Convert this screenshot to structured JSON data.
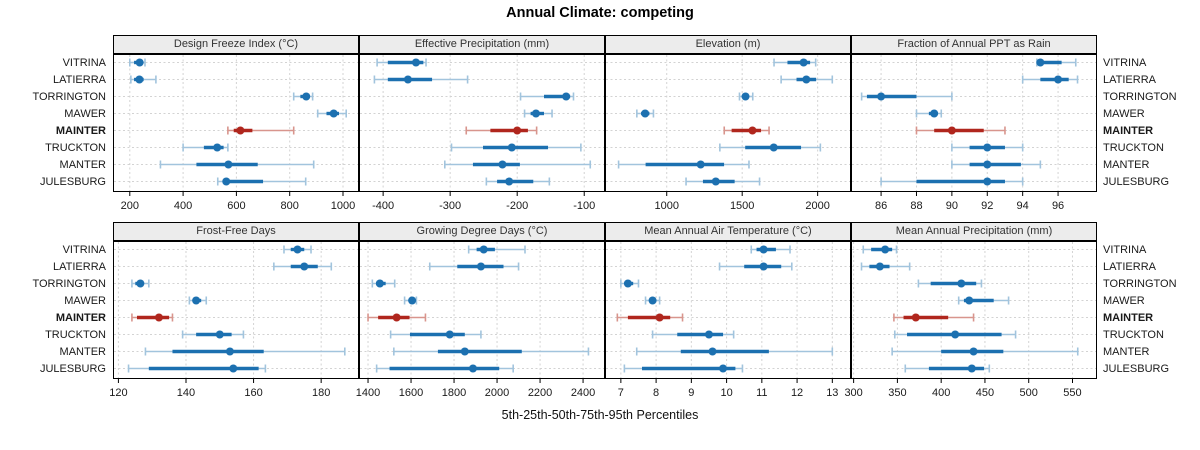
{
  "title": "Annual Climate: competing",
  "caption": "5th-25th-50th-75th-95th Percentiles",
  "stations": [
    "VITRINA",
    "LATIERRA",
    "TORRINGTON",
    "MAWER",
    "MAINTER",
    "TRUCKTON",
    "MANTER",
    "JULESBURG"
  ],
  "highlight_station": "MAINTER",
  "percentiles": [
    5,
    25,
    50,
    75,
    95
  ],
  "colors": {
    "blue": "#1c70b0",
    "blue_light": "#a2c4dd",
    "red": "#b0261d",
    "red_light": "#d8958d",
    "grid": "#d3d3d3",
    "strip_bg": "#ececec",
    "panel_border": "#000000",
    "tick_text": "#1a1a1a"
  },
  "chart_data": [
    {
      "type": "scatter",
      "title": "Design Freeze Index (°C)",
      "row": 0,
      "col": 0,
      "ticks": [
        200,
        400,
        600,
        800,
        1000
      ],
      "xlim": [
        137,
        1060
      ],
      "series": [
        [
          200,
          216,
          237,
          250,
          257
        ],
        [
          204,
          216,
          236,
          252,
          298
        ],
        [
          815,
          840,
          862,
          875,
          886
        ],
        [
          905,
          938,
          965,
          985,
          1012
        ],
        [
          568,
          590,
          615,
          660,
          815
        ],
        [
          400,
          478,
          528,
          552,
          568
        ],
        [
          315,
          450,
          570,
          680,
          890
        ],
        [
          530,
          548,
          562,
          700,
          860
        ]
      ]
    },
    {
      "type": "scatter",
      "title": "Effective Precipitation (mm)",
      "row": 0,
      "col": 1,
      "ticks": [
        -400,
        -300,
        -200,
        -100
      ],
      "xlim": [
        -436,
        -69
      ],
      "series": [
        [
          -409,
          -393,
          -351,
          -340,
          -336
        ],
        [
          -413,
          -393,
          -363,
          -327,
          -274
        ],
        [
          -195,
          -160,
          -127,
          -121,
          -116
        ],
        [
          -189,
          -180,
          -172,
          -160,
          -148
        ],
        [
          -276,
          -240,
          -200,
          -184,
          -171
        ],
        [
          -298,
          -251,
          -208,
          -154,
          -105
        ],
        [
          -308,
          -266,
          -222,
          -196,
          -91
        ],
        [
          -246,
          -230,
          -212,
          -176,
          -152
        ]
      ]
    },
    {
      "type": "scatter",
      "title": "Elevation (m)",
      "row": 0,
      "col": 2,
      "ticks": [
        1000,
        1500,
        2000
      ],
      "xlim": [
        591,
        2221
      ],
      "series": [
        [
          1711,
          1800,
          1907,
          1950,
          1987
        ],
        [
          1758,
          1860,
          1925,
          1990,
          2097
        ],
        [
          1482,
          1502,
          1522,
          1545,
          1570
        ],
        [
          802,
          830,
          857,
          885,
          912
        ],
        [
          1381,
          1430,
          1568,
          1625,
          1678
        ],
        [
          1352,
          1520,
          1709,
          1890,
          2018
        ],
        [
          681,
          860,
          1225,
          1380,
          1545
        ],
        [
          1128,
          1240,
          1325,
          1450,
          1615
        ]
      ]
    },
    {
      "type": "scatter",
      "title": "Fraction of Annual PPT as Rain",
      "row": 0,
      "col": 3,
      "ticks": [
        86,
        88,
        90,
        92,
        94,
        96
      ],
      "xlim": [
        84.3,
        98.2
      ],
      "series": [
        [
          94.8,
          94.9,
          95,
          96.2,
          97
        ],
        [
          94,
          95,
          96,
          96.6,
          97.1
        ],
        [
          84.9,
          85.2,
          86,
          88,
          90
        ],
        [
          88,
          88.7,
          89,
          89.1,
          89.4
        ],
        [
          88,
          89,
          90,
          91.8,
          93
        ],
        [
          90,
          91,
          92,
          93,
          94
        ],
        [
          90,
          91,
          92,
          93.9,
          95
        ],
        [
          86,
          88,
          92,
          93,
          94
        ]
      ]
    },
    {
      "type": "scatter",
      "title": "Frost-Free Days",
      "row": 1,
      "col": 0,
      "ticks": [
        120,
        140,
        160,
        180
      ],
      "xlim": [
        118.4,
        191.2
      ],
      "series": [
        [
          169,
          171,
          173,
          175,
          177
        ],
        [
          166,
          171,
          175,
          179,
          183
        ],
        [
          124,
          125,
          126.5,
          127.5,
          129
        ],
        [
          141,
          142,
          143,
          144.5,
          146
        ],
        [
          124,
          125.5,
          132,
          135,
          136
        ],
        [
          139,
          143,
          150,
          153.5,
          157
        ],
        [
          128,
          136,
          153,
          163,
          187
        ],
        [
          123,
          129,
          154,
          161.5,
          163.5
        ]
      ]
    },
    {
      "type": "scatter",
      "title": "Growing Degree Days (°C)",
      "row": 1,
      "col": 1,
      "ticks": [
        1400,
        1600,
        1800,
        2000,
        2200,
        2400
      ],
      "xlim": [
        1358,
        2502
      ],
      "series": [
        [
          1868,
          1905,
          1938,
          1990,
          2130
        ],
        [
          1687,
          1815,
          1925,
          2030,
          2100
        ],
        [
          1420,
          1437,
          1455,
          1482,
          1524
        ],
        [
          1570,
          1590,
          1605,
          1615,
          1625
        ],
        [
          1400,
          1447,
          1533,
          1593,
          1667
        ],
        [
          1505,
          1595,
          1780,
          1850,
          1925
        ],
        [
          1520,
          1725,
          1850,
          2115,
          2425
        ],
        [
          1440,
          1500,
          1888,
          2010,
          2075
        ]
      ]
    },
    {
      "type": "scatter",
      "title": "Mean Annual Air Temperature (°C)",
      "row": 1,
      "col": 2,
      "ticks": [
        7,
        8,
        9,
        10,
        11,
        12,
        13
      ],
      "xlim": [
        6.55,
        13.53
      ],
      "series": [
        [
          10.7,
          10.85,
          11.05,
          11.4,
          11.8
        ],
        [
          9.8,
          10.5,
          11.05,
          11.55,
          11.85
        ],
        [
          7.0,
          7.1,
          7.2,
          7.35,
          7.5
        ],
        [
          7.7,
          7.8,
          7.9,
          8.0,
          8.1
        ],
        [
          6.9,
          7.2,
          8.1,
          8.4,
          8.75
        ],
        [
          7.9,
          8.6,
          9.5,
          9.9,
          10.2
        ],
        [
          7.45,
          8.7,
          9.6,
          11.2,
          13.0
        ],
        [
          7.1,
          7.6,
          9.9,
          10.25,
          10.45
        ]
      ]
    },
    {
      "type": "scatter",
      "title": "Mean Annual Precipitation (mm)",
      "row": 1,
      "col": 3,
      "ticks": [
        300,
        350,
        400,
        450,
        500,
        550
      ],
      "xlim": [
        297,
        578
      ],
      "series": [
        [
          311,
          320,
          336,
          344,
          349
        ],
        [
          309,
          318,
          330,
          341,
          364
        ],
        [
          374,
          388,
          423,
          440,
          446
        ],
        [
          420,
          426,
          432,
          460,
          477
        ],
        [
          346,
          357,
          371,
          408,
          437
        ],
        [
          347,
          361,
          416,
          469,
          485
        ],
        [
          344,
          400,
          437,
          471,
          556
        ],
        [
          359,
          386,
          435,
          449,
          455
        ]
      ]
    }
  ]
}
